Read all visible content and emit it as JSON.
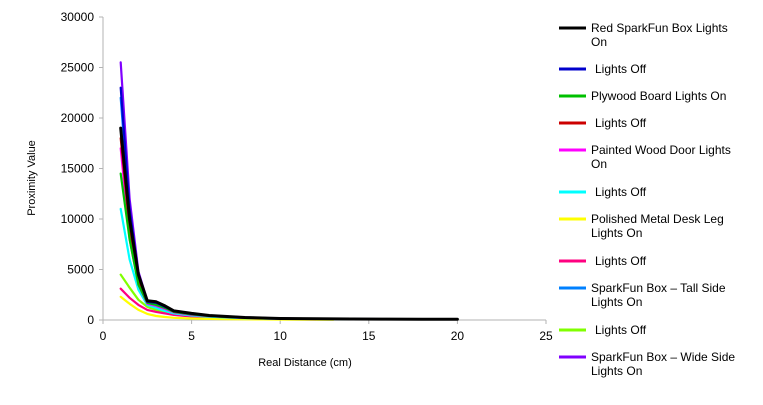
{
  "chart_data": {
    "type": "line",
    "title": "",
    "xlabel": "Real Distance (cm)",
    "ylabel": "Proximity Value",
    "xlim": [
      0,
      25
    ],
    "ylim": [
      0,
      30000
    ],
    "x_ticks": [
      0,
      5,
      10,
      15,
      20,
      25
    ],
    "y_ticks": [
      0,
      5000,
      10000,
      15000,
      20000,
      25000,
      30000
    ],
    "grid": false,
    "legend_position": "right",
    "series": [
      {
        "name": "Red SparkFun Box Lights On",
        "color": "#000000",
        "x": [
          1,
          1.5,
          2,
          2.5,
          3,
          3.5,
          4,
          5,
          6,
          7,
          8,
          9,
          10,
          12,
          14,
          16,
          18,
          20
        ],
        "y": [
          19000,
          10000,
          4500,
          1900,
          1800,
          1400,
          900,
          650,
          450,
          350,
          250,
          200,
          150,
          120,
          100,
          90,
          80,
          70
        ]
      },
      {
        "name": "Lights Off",
        "color": "#0000cc",
        "x": [
          1,
          1.5,
          2,
          2.5,
          3,
          3.5,
          4,
          5,
          6,
          7,
          8,
          9,
          10,
          12,
          14,
          16,
          18,
          20
        ],
        "y": [
          23000,
          11000,
          4500,
          1800,
          1700,
          1300,
          900,
          600,
          450,
          350,
          250,
          200,
          150,
          120,
          100,
          90,
          80,
          70
        ]
      },
      {
        "name": "Plywood Board Lights On",
        "color": "#00c000",
        "x": [
          1,
          1.5,
          2,
          2.5,
          3,
          3.5,
          4,
          5,
          6,
          7,
          8,
          9,
          10,
          12,
          14
        ],
        "y": [
          14500,
          8000,
          3500,
          1700,
          1500,
          1200,
          800,
          550,
          400,
          300,
          230,
          180,
          150,
          110,
          90
        ]
      },
      {
        "name": "Lights Off",
        "color": "#cc0000",
        "x": [
          1,
          1.5,
          2,
          2.5,
          3,
          3.5,
          4,
          5,
          6,
          7,
          8,
          9,
          10,
          12
        ],
        "y": [
          18000,
          9000,
          4000,
          1800,
          1600,
          1300,
          850,
          600,
          430,
          330,
          250,
          190,
          150,
          110
        ]
      },
      {
        "name": "Painted Wood Door Lights On",
        "color": "#ff00ff",
        "x": [
          1,
          1.5,
          2,
          2.5,
          3,
          3.5,
          4,
          5,
          6,
          7,
          8,
          9,
          10,
          12
        ],
        "y": [
          17000,
          8000,
          3500,
          1600,
          1400,
          1100,
          750,
          500,
          380,
          280,
          210,
          160,
          130,
          100
        ]
      },
      {
        "name": "Lights Off",
        "color": "#00ffff",
        "x": [
          1,
          1.5,
          2,
          2.5,
          3,
          3.5,
          4,
          5,
          6,
          7,
          8,
          9,
          10
        ],
        "y": [
          11000,
          6000,
          3000,
          1500,
          1200,
          900,
          650,
          450,
          330,
          250,
          190,
          150,
          120
        ]
      },
      {
        "name": "Polished Metal Desk Leg Lights On",
        "color": "#ffff00",
        "x": [
          1,
          1.5,
          2,
          2.5,
          3,
          3.5,
          4,
          5,
          6,
          7,
          8,
          9,
          10,
          12,
          13
        ],
        "y": [
          2300,
          1600,
          1000,
          600,
          400,
          300,
          220,
          150,
          110,
          90,
          70,
          60,
          50,
          40,
          35
        ]
      },
      {
        "name": "Lights Off",
        "color": "#ff0080",
        "x": [
          1,
          1.5,
          2,
          2.5,
          3,
          3.5,
          4,
          5,
          6,
          7,
          8,
          9,
          10
        ],
        "y": [
          3100,
          2200,
          1500,
          1000,
          800,
          650,
          500,
          350,
          250,
          190,
          150,
          120,
          100
        ]
      },
      {
        "name": "SparkFun Box – Tall Side Lights On",
        "color": "#0080ff",
        "x": [
          1,
          1.5,
          2,
          2.5,
          3,
          3.5,
          4,
          5,
          6,
          7,
          8,
          9,
          10,
          12
        ],
        "y": [
          22000,
          10500,
          4200,
          1800,
          1700,
          1300,
          880,
          600,
          440,
          340,
          250,
          190,
          150,
          110
        ]
      },
      {
        "name": "Lights Off",
        "color": "#80ff00",
        "x": [
          1,
          1.5,
          2,
          2.5,
          3,
          3.5,
          4,
          5,
          6,
          7,
          8,
          9,
          10
        ],
        "y": [
          4500,
          3200,
          2000,
          1300,
          1000,
          800,
          600,
          400,
          290,
          220,
          170,
          140,
          110
        ]
      },
      {
        "name": "SparkFun Box – Wide Side Lights On",
        "color": "#8000ff",
        "x": [
          1,
          1.5,
          2,
          2.5,
          3,
          3.5,
          4,
          5,
          6,
          7,
          8,
          9,
          10,
          12
        ],
        "y": [
          25500,
          12000,
          4800,
          1900,
          1800,
          1400,
          920,
          620,
          450,
          350,
          260,
          200,
          160,
          120
        ]
      }
    ],
    "legend_labels": [
      [
        "Red SparkFun Box Lights",
        "On"
      ],
      [
        "Lights Off"
      ],
      [
        "Plywood Board Lights On"
      ],
      [
        "Lights Off"
      ],
      [
        "Painted Wood Door Lights",
        "On"
      ],
      [
        "Lights Off"
      ],
      [
        "Polished Metal Desk Leg",
        "Lights On"
      ],
      [
        "Lights Off"
      ],
      [
        "SparkFun Box – Tall Side",
        "Lights On"
      ],
      [
        "Lights Off"
      ],
      [
        "SparkFun Box – Wide Side",
        "Lights On"
      ]
    ]
  }
}
